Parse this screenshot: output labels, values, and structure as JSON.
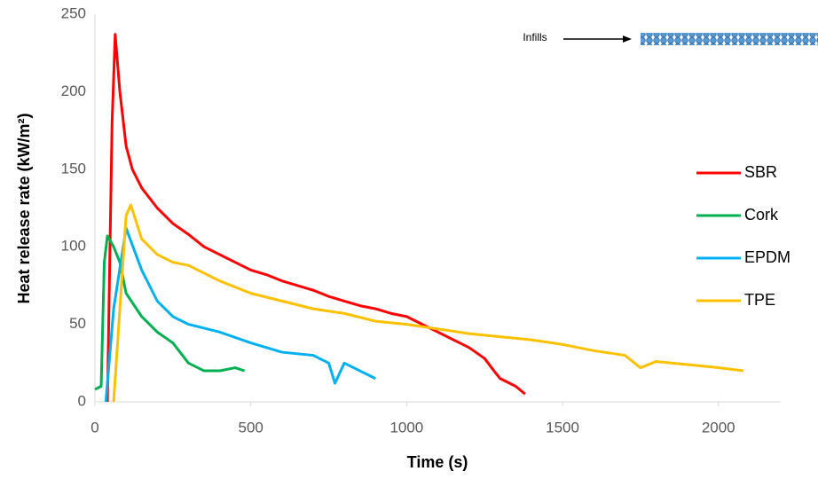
{
  "chart_data": {
    "type": "line",
    "xlabel": "Time (s)",
    "ylabel": "Heat release rate (kW/m²)",
    "annotation": "Infills",
    "xlim": [
      0,
      2200
    ],
    "xticks": [
      0,
      500,
      1000,
      1500,
      2000
    ],
    "ylim": [
      0,
      250
    ],
    "yticks": [
      0,
      50,
      100,
      150,
      200,
      250
    ],
    "grid": false,
    "legend": "right",
    "series": [
      {
        "name": "SBR",
        "color": "#ff0000",
        "x": [
          40,
          55,
          65,
          80,
          100,
          120,
          150,
          200,
          250,
          300,
          350,
          400,
          450,
          500,
          550,
          600,
          650,
          700,
          750,
          800,
          850,
          900,
          950,
          1000,
          1050,
          1100,
          1150,
          1200,
          1250,
          1280,
          1300,
          1350,
          1380
        ],
        "values": [
          0,
          180,
          237,
          200,
          165,
          150,
          138,
          125,
          115,
          108,
          100,
          95,
          90,
          85,
          82,
          78,
          75,
          72,
          68,
          65,
          62,
          60,
          57,
          55,
          50,
          45,
          40,
          35,
          28,
          20,
          15,
          10,
          5
        ]
      },
      {
        "name": "Cork",
        "color": "#00b050",
        "x": [
          0,
          20,
          30,
          40,
          60,
          80,
          100,
          150,
          200,
          250,
          300,
          350,
          400,
          450,
          480
        ],
        "values": [
          8,
          10,
          90,
          107,
          100,
          90,
          70,
          55,
          45,
          38,
          25,
          20,
          20,
          22,
          20
        ]
      },
      {
        "name": "EPDM",
        "color": "#00b0f0",
        "x": [
          35,
          60,
          100,
          150,
          200,
          250,
          300,
          400,
          500,
          600,
          700,
          750,
          770,
          800,
          850,
          900
        ],
        "values": [
          0,
          60,
          112,
          85,
          65,
          55,
          50,
          45,
          38,
          32,
          30,
          25,
          12,
          25,
          20,
          15
        ]
      },
      {
        "name": "TPE",
        "color": "#ffc000",
        "x": [
          60,
          100,
          115,
          150,
          200,
          250,
          300,
          400,
          500,
          600,
          700,
          800,
          900,
          1000,
          1100,
          1200,
          1300,
          1400,
          1500,
          1600,
          1700,
          1750,
          1800,
          1900,
          2000,
          2080
        ],
        "values": [
          0,
          120,
          127,
          105,
          95,
          90,
          88,
          78,
          70,
          65,
          60,
          57,
          52,
          50,
          47,
          44,
          42,
          40,
          37,
          33,
          30,
          22,
          26,
          24,
          22,
          20
        ]
      }
    ]
  }
}
